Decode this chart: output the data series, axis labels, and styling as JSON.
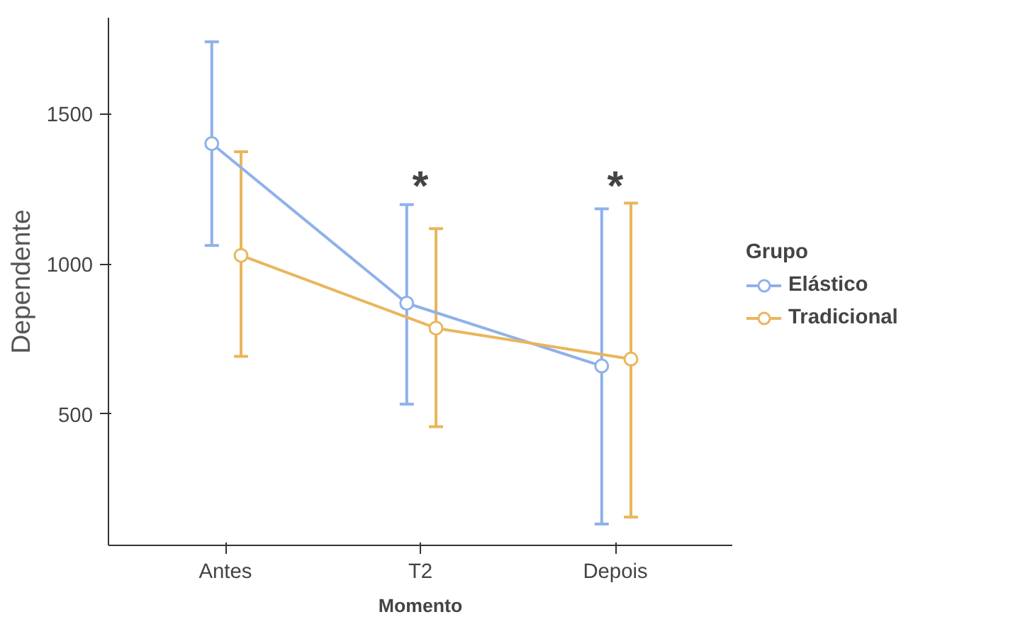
{
  "chart_data": {
    "type": "line",
    "xlabel": "Momento",
    "ylabel": "Dependente",
    "legend_title": "Grupo",
    "categories": [
      "Antes",
      "T2",
      "Depois"
    ],
    "series": [
      {
        "name": "Elástico",
        "color": "#8fb1ea",
        "values": [
          1400,
          869,
          660
        ],
        "errors": [
          [
            1061,
            1739
          ],
          [
            533,
            1197
          ],
          [
            134,
            1183
          ]
        ]
      },
      {
        "name": "Tradicional",
        "color": "#e9b65c",
        "values": [
          1028,
          786,
          683
        ],
        "errors": [
          [
            692,
            1373
          ],
          [
            458,
            1117
          ],
          [
            157,
            1202
          ]
        ]
      }
    ],
    "ylim": [
      63,
      1819
    ],
    "yticks": [
      500,
      1000,
      1500
    ],
    "grid": false,
    "legend": "right",
    "marker": "circle",
    "line_style": "solid",
    "annotations": [
      "*",
      "*"
    ]
  }
}
